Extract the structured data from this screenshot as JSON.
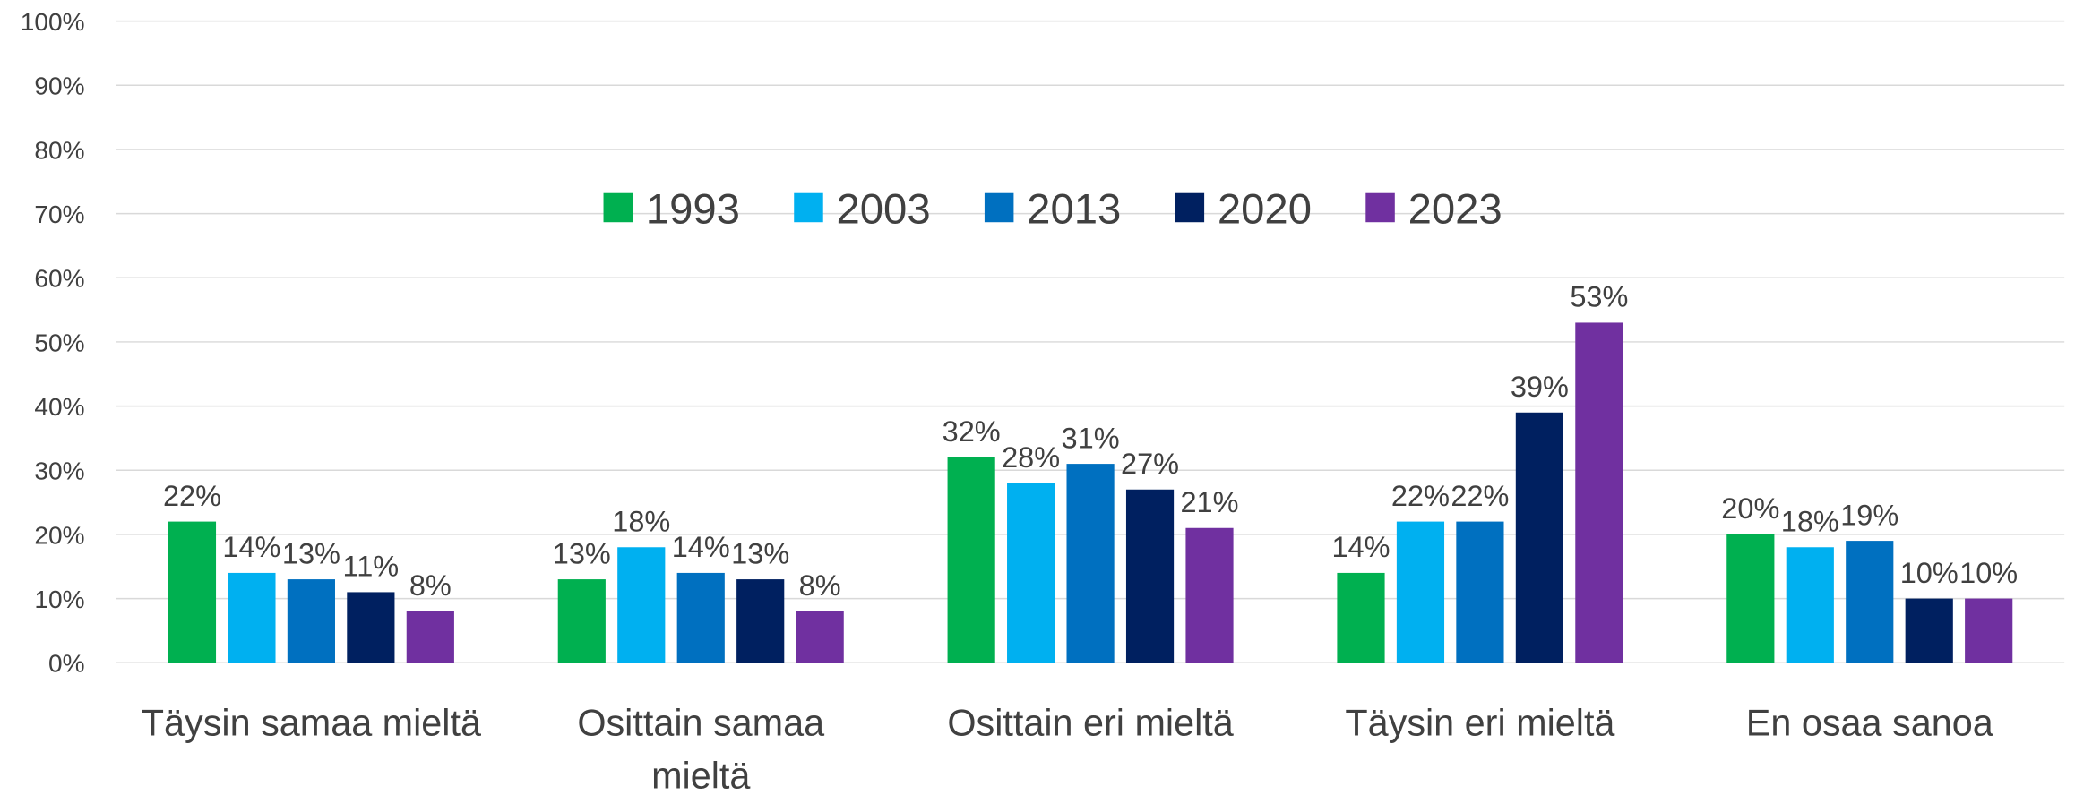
{
  "chart_data": {
    "type": "bar",
    "categories": [
      "Täysin samaa mieltä",
      "Osittain samaa mieltä",
      "Osittain eri mieltä",
      "Täysin eri mieltä",
      "En osaa sanoa"
    ],
    "series": [
      {
        "name": "1993",
        "color": "#00b050",
        "values": [
          22,
          13,
          32,
          14,
          20
        ],
        "value_labels": [
          "22%",
          "13%",
          "32%",
          "14%",
          "20%"
        ]
      },
      {
        "name": "2003",
        "color": "#00b0f0",
        "values": [
          14,
          18,
          28,
          22,
          18
        ],
        "value_labels": [
          "14%",
          "18%",
          "28%",
          "22%",
          "18%"
        ]
      },
      {
        "name": "2013",
        "color": "#0070c0",
        "values": [
          13,
          14,
          31,
          22,
          19
        ],
        "value_labels": [
          "13%",
          "14%",
          "31%",
          "22%",
          "19%"
        ]
      },
      {
        "name": "2020",
        "color": "#002060",
        "values": [
          11,
          13,
          27,
          39,
          10
        ],
        "value_labels": [
          "11%",
          "13%",
          "27%",
          "39%",
          "10%"
        ]
      },
      {
        "name": "2023",
        "color": "#7030a0",
        "values": [
          8,
          8,
          21,
          53,
          10
        ],
        "value_labels": [
          "8%",
          "8%",
          "21%",
          "53%",
          "10%"
        ]
      }
    ],
    "ylim": [
      0,
      100
    ],
    "yticks": [
      {
        "value": 0,
        "label": "0%"
      },
      {
        "value": 10,
        "label": "10%"
      },
      {
        "value": 20,
        "label": "20%"
      },
      {
        "value": 30,
        "label": "30%"
      },
      {
        "value": 40,
        "label": "40%"
      },
      {
        "value": 50,
        "label": "50%"
      },
      {
        "value": 60,
        "label": "60%"
      },
      {
        "value": 70,
        "label": "70%"
      },
      {
        "value": 80,
        "label": "80%"
      },
      {
        "value": 90,
        "label": "90%"
      },
      {
        "value": 100,
        "label": "100%"
      }
    ],
    "grid": true,
    "legend": "top"
  }
}
